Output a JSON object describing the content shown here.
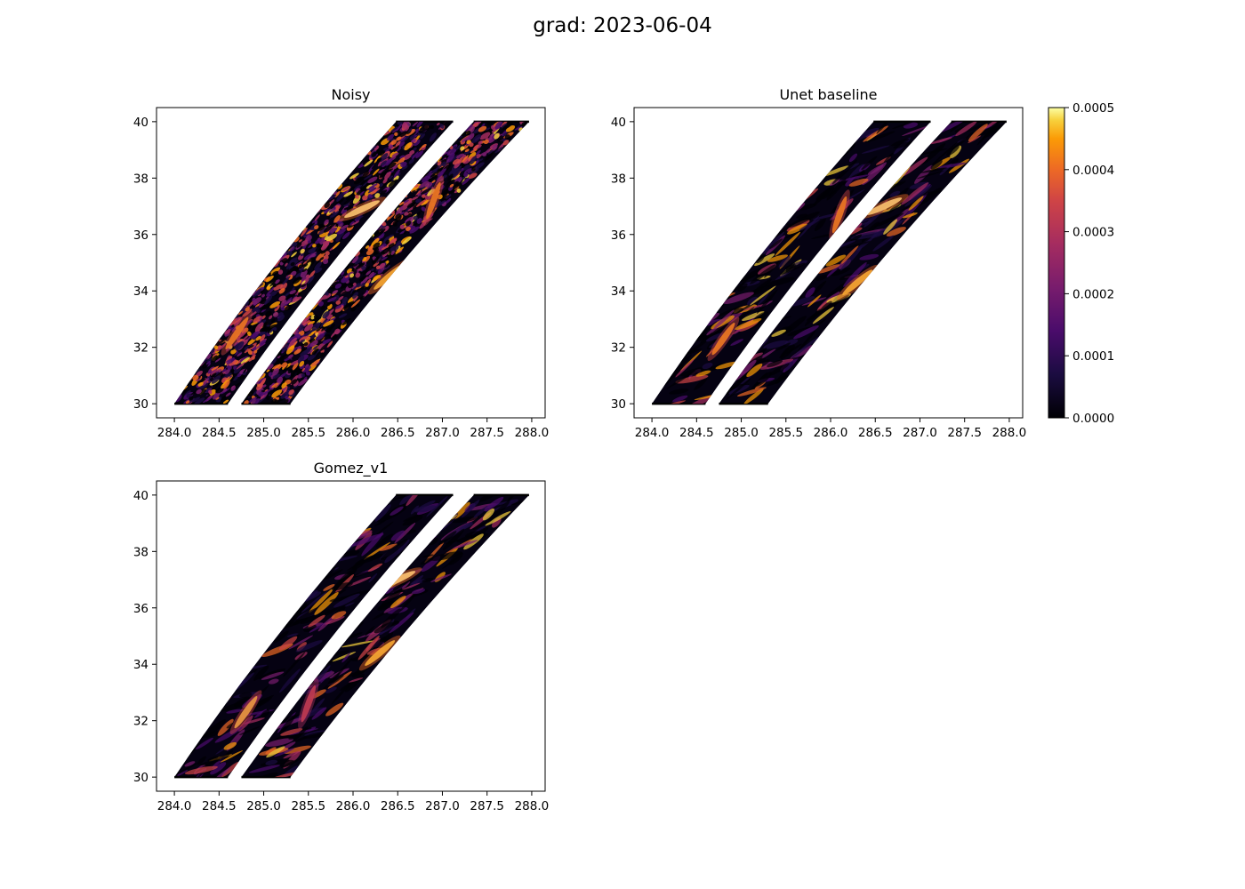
{
  "figure": {
    "title": "grad: 2023-06-04"
  },
  "chart_data": [
    {
      "type": "heatmap",
      "title": "Noisy",
      "xlabel": "",
      "ylabel": "",
      "xlim": [
        283.8,
        288.15
      ],
      "ylim": [
        29.5,
        40.5
      ],
      "xticks": [
        "284.0",
        "284.5",
        "285.0",
        "285.5",
        "286.0",
        "286.5",
        "287.0",
        "287.5",
        "288.0"
      ],
      "yticks": [
        "30",
        "32",
        "34",
        "36",
        "38",
        "40"
      ],
      "texture": "noisy",
      "colormap": "inferno",
      "swaths": [
        {
          "name": "left",
          "bottom_x": [
            284.0,
            284.6
          ],
          "top_x": [
            286.48,
            287.12
          ],
          "lat": [
            30,
            40
          ]
        },
        {
          "name": "right",
          "bottom_x": [
            284.75,
            285.3
          ],
          "top_x": [
            287.35,
            287.97
          ],
          "lat": [
            30,
            40
          ]
        }
      ],
      "features": [
        {
          "lon": 286.1,
          "lat": 36.9,
          "value": 0.0005
        },
        {
          "lon": 286.4,
          "lat": 34.5,
          "value": 0.00045
        },
        {
          "lon": 284.7,
          "lat": 32.5,
          "value": 0.0004
        },
        {
          "lon": 286.9,
          "lat": 37.2,
          "value": 0.0004
        }
      ]
    },
    {
      "type": "heatmap",
      "title": "Unet baseline",
      "xlabel": "",
      "ylabel": "",
      "xlim": [
        283.8,
        288.15
      ],
      "ylim": [
        29.5,
        40.5
      ],
      "xticks": [
        "284.0",
        "284.5",
        "285.0",
        "285.5",
        "286.0",
        "286.5",
        "287.0",
        "287.5",
        "288.0"
      ],
      "yticks": [
        "30",
        "32",
        "34",
        "36",
        "38",
        "40"
      ],
      "texture": "smooth",
      "colormap": "inferno",
      "swaths": [
        {
          "name": "left",
          "bottom_x": [
            284.0,
            284.6
          ],
          "top_x": [
            286.48,
            287.12
          ],
          "lat": [
            30,
            40
          ]
        },
        {
          "name": "right",
          "bottom_x": [
            284.75,
            285.3
          ],
          "top_x": [
            287.35,
            287.97
          ],
          "lat": [
            30,
            40
          ]
        }
      ],
      "features": [
        {
          "lon": 286.6,
          "lat": 37.0,
          "value": 0.0005
        },
        {
          "lon": 286.3,
          "lat": 34.3,
          "value": 0.00045
        },
        {
          "lon": 284.8,
          "lat": 32.3,
          "value": 0.0004
        },
        {
          "lon": 286.1,
          "lat": 36.7,
          "value": 0.0004
        }
      ]
    },
    {
      "type": "heatmap",
      "title": "Gomez_v1",
      "xlabel": "",
      "ylabel": "",
      "xlim": [
        283.8,
        288.15
      ],
      "ylim": [
        29.5,
        40.5
      ],
      "xticks": [
        "284.0",
        "284.5",
        "285.0",
        "285.5",
        "286.0",
        "286.5",
        "287.0",
        "287.5",
        "288.0"
      ],
      "yticks": [
        "30",
        "32",
        "34",
        "36",
        "38",
        "40"
      ],
      "texture": "smooth",
      "colormap": "inferno",
      "swaths": [
        {
          "name": "left",
          "bottom_x": [
            284.0,
            284.6
          ],
          "top_x": [
            286.48,
            287.12
          ],
          "lat": [
            30,
            40
          ]
        },
        {
          "name": "right",
          "bottom_x": [
            284.75,
            285.3
          ],
          "top_x": [
            287.35,
            287.97
          ],
          "lat": [
            30,
            40
          ]
        }
      ],
      "features": [
        {
          "lon": 286.5,
          "lat": 37.0,
          "value": 0.0005
        },
        {
          "lon": 286.3,
          "lat": 34.4,
          "value": 0.00045
        },
        {
          "lon": 284.8,
          "lat": 32.3,
          "value": 0.00042
        },
        {
          "lon": 285.5,
          "lat": 32.6,
          "value": 0.0003
        }
      ]
    }
  ],
  "colorbar": {
    "colormap": "inferno",
    "range": [
      0.0,
      0.0005
    ],
    "ticks": [
      "0.0000",
      "0.0001",
      "0.0002",
      "0.0003",
      "0.0004",
      "0.0005"
    ]
  }
}
